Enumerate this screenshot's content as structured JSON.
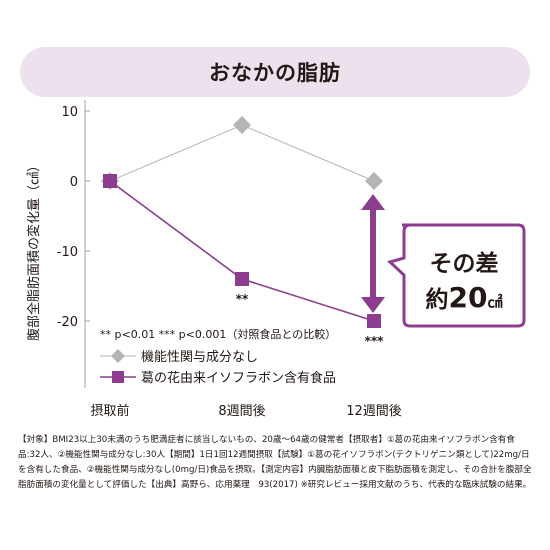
{
  "chart_data": {
    "type": "line",
    "title": "おなかの脂肪",
    "ylabel": "腹部全脂肪面積の変化量（㎠）",
    "categories": [
      "摂取前",
      "8週間後",
      "12週間後"
    ],
    "yticks": [
      "10",
      "0",
      "-10",
      "-20"
    ],
    "ylim": [
      -25,
      10
    ],
    "grid": false,
    "legend_position": "bottom-left",
    "series": [
      {
        "name": "機能性関与成分なし",
        "values": [
          0,
          8,
          0
        ],
        "color": "#b5b5b6",
        "marker": "diamond"
      },
      {
        "name": "葛の花由来イソフラボン含有食品",
        "values": [
          0,
          -14,
          -20
        ],
        "color": "#8c3d8f",
        "marker": "square"
      }
    ],
    "significance_labels": [
      "",
      "**",
      "***"
    ],
    "significance_note": "** p<0.01  *** p<0.001（対照食品との比較）",
    "annotation": {
      "line1": "その差",
      "line2_prefix": "約",
      "line2_value": "20",
      "line2_unit": "㎠"
    },
    "accent_color": "#8c3d8f"
  },
  "footnote": "【対象】BMI23以上30未満のうち肥満症者に該当しないもの、20歳～64歳の健常者【摂取者】①葛の花由来イソフラボン含有食品:32人、②機能性関与成分なし:30人【期間】1日1回12週間摂取【試験】①葛の花イソフラボン(テクトリゲニン類として)22mg/日を含有した食品、②機能性関与成分なし(0mg/日)食品を摂取。【測定内容】内臓脂肪面積と皮下脂肪面積を測定し、その合計を腹部全脂肪面積の変化量として評価した【出典】高野ら、応用薬理　93(2017) ※研究レビュー採用文献のうち、代表的な臨床試験の結果。"
}
